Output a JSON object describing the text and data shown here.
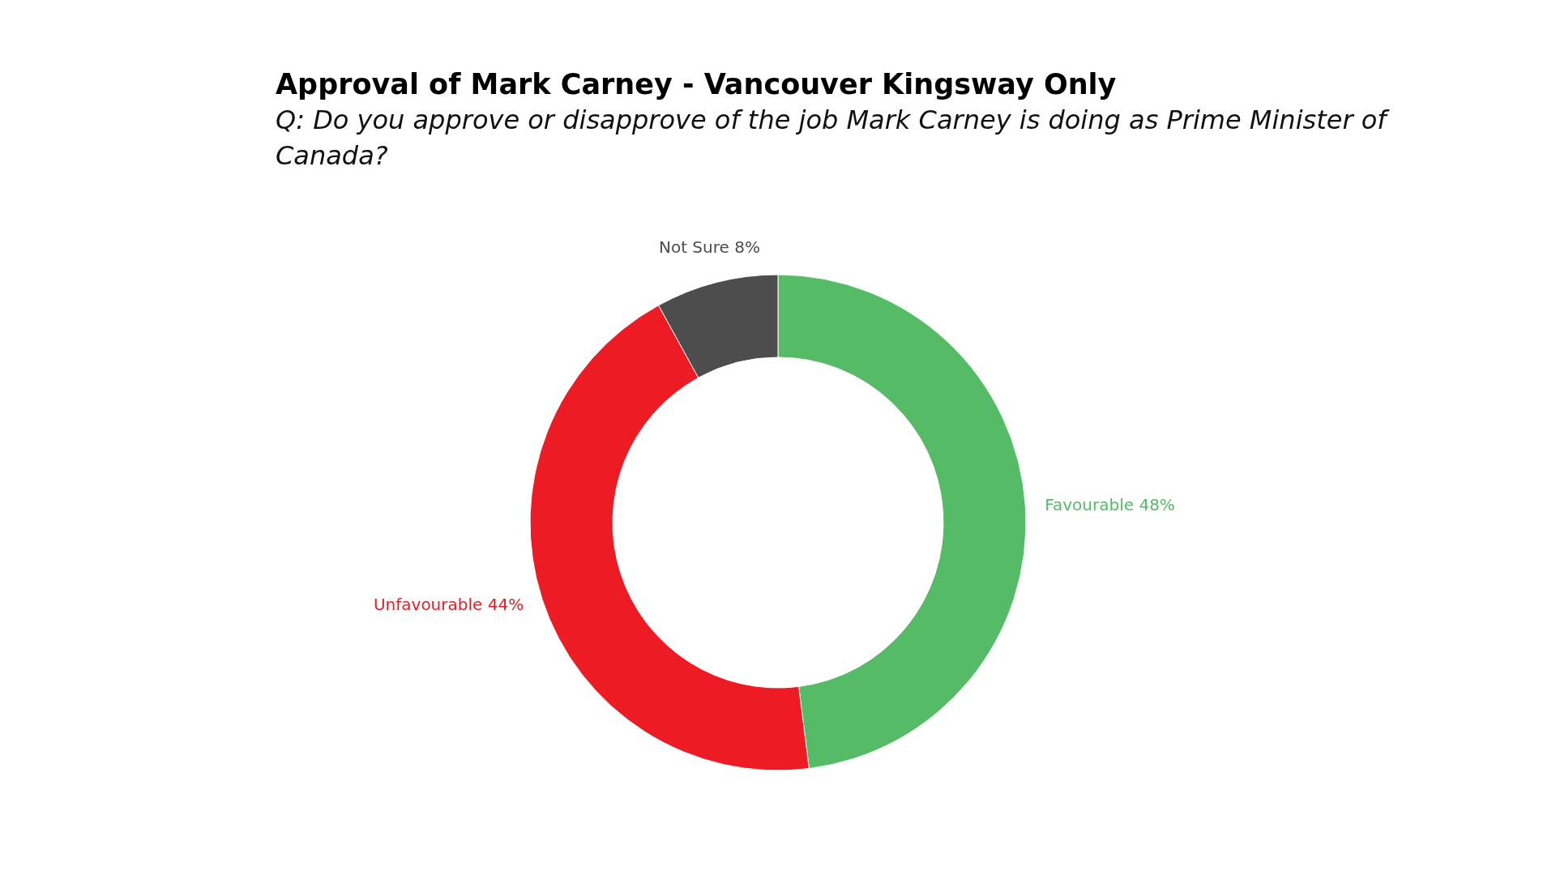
{
  "chart_data": {
    "type": "donut",
    "title": "Approval of Mark Carney - Vancouver Kingsway Only",
    "subtitle": "Q: Do you approve or disapprove of the job Mark Carney is doing as Prime Minister of Canada?",
    "categories": [
      "Favourable",
      "Unfavourable",
      "Not Sure"
    ],
    "values": [
      48,
      44,
      8
    ],
    "value_labels": [
      "48%",
      "44%",
      "8%"
    ],
    "colors": [
      "#55bb66",
      "#ed1c24",
      "#4d4d4d"
    ]
  }
}
